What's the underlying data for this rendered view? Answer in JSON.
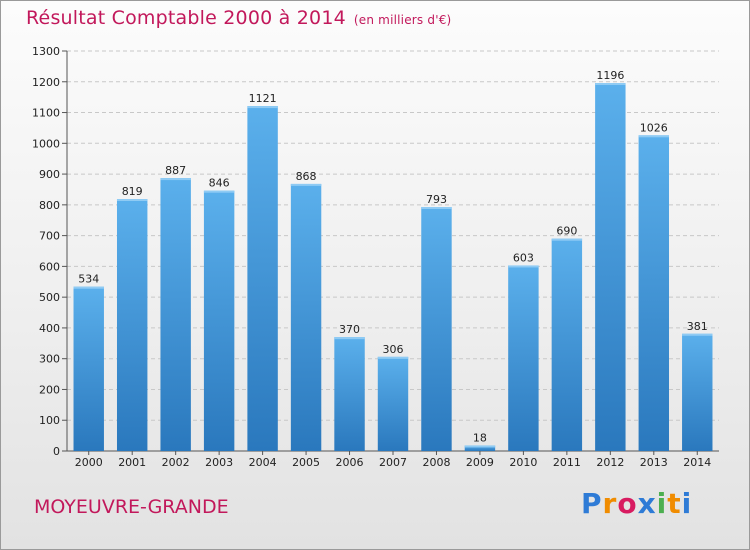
{
  "header": {
    "title": "Résultat Comptable 2000 à 2014",
    "subtitle": "(en milliers d'€)"
  },
  "footer": {
    "commune": "MOYEUVRE-GRANDE",
    "logo_letters": [
      "P",
      "r",
      "o",
      "x",
      "i",
      "t",
      "i"
    ],
    "logo_colors": [
      "#2e7bd6",
      "#f08c00",
      "#d81b60",
      "#2e7bd6",
      "#4caf50",
      "#f08c00",
      "#2e7bd6"
    ]
  },
  "chart_data": {
    "type": "bar",
    "title": "Résultat Comptable 2000 à 2014",
    "subtitle": "(en milliers d'€)",
    "categories": [
      "2000",
      "2001",
      "2002",
      "2003",
      "2004",
      "2005",
      "2006",
      "2007",
      "2008",
      "2009",
      "2010",
      "2011",
      "2012",
      "2013",
      "2014"
    ],
    "values": [
      534,
      819,
      887,
      846,
      1121,
      868,
      370,
      306,
      793,
      18,
      603,
      690,
      1196,
      1026,
      381
    ],
    "xlabel": "",
    "ylabel": "",
    "ylim": [
      0,
      1300
    ],
    "yticks": [
      0,
      100,
      200,
      300,
      400,
      500,
      600,
      700,
      800,
      900,
      1000,
      1100,
      1200,
      1300
    ],
    "grid": true,
    "bar_color": "#4a9fe0",
    "bar_color_dark": "#2a75b8"
  }
}
